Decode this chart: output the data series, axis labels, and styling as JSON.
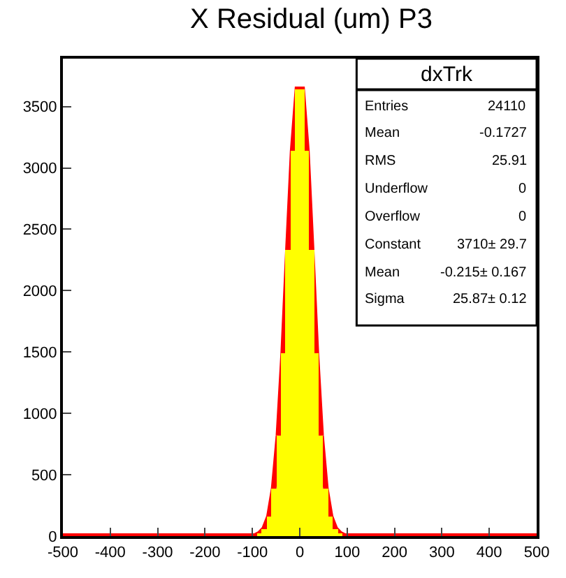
{
  "chart_data": {
    "type": "histogram",
    "title": "X Residual (um) P3",
    "bins": [
      -90,
      -80,
      -70,
      -60,
      -50,
      -40,
      -30,
      -20,
      -10,
      0,
      10,
      20,
      30,
      40,
      50,
      60,
      70,
      80,
      90
    ],
    "values": [
      20,
      60,
      160,
      390,
      820,
      1490,
      2330,
      3140,
      3640,
      3640,
      3140,
      2330,
      1490,
      820,
      390,
      160,
      60,
      20
    ],
    "color": "#ffff00",
    "series": [
      {
        "type": "line",
        "color": "#ff0000",
        "x": [
          -500,
          -95,
          -85,
          -75,
          -65,
          -55,
          -45,
          -35,
          -25,
          -15,
          -5,
          5,
          15,
          25,
          35,
          45,
          55,
          65,
          75,
          85,
          95,
          500
        ],
        "values": [
          0,
          0,
          20,
          60,
          160,
          390,
          820,
          1490,
          2330,
          3140,
          3640,
          3640,
          3140,
          2330,
          1490,
          820,
          390,
          160,
          60,
          20,
          0,
          0
        ]
      }
    ],
    "xlim": [
      -500,
      500
    ],
    "xticks": [
      -500,
      -400,
      -300,
      -200,
      -100,
      0,
      100,
      200,
      300,
      400,
      500
    ],
    "ylim": [
      0,
      3890
    ],
    "yticks": [
      0,
      500,
      1000,
      1500,
      2000,
      2500,
      3000,
      3500
    ],
    "annotations": [
      "dxTrk",
      "Entries",
      "24110",
      "Mean",
      "-0.1727",
      "RMS",
      "25.91",
      "Underflow",
      "0",
      "Overflow",
      "0",
      "Constant",
      "3710± 29.7",
      "Mean",
      "-0.215± 0.167",
      "Sigma",
      "25.87± 0.12"
    ]
  }
}
